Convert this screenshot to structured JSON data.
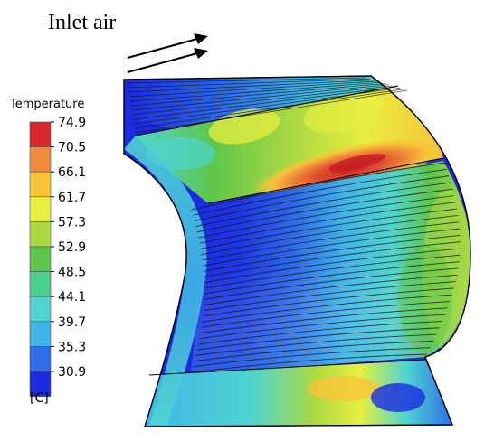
{
  "annotation": {
    "inlet_label": "Inlet air"
  },
  "legend": {
    "title": "Temperature",
    "unit": "[C]",
    "ticks": [
      "74.9",
      "70.5",
      "66.1",
      "61.7",
      "57.3",
      "52.9",
      "48.5",
      "44.1",
      "39.7",
      "35.3",
      "30.9"
    ],
    "colors": [
      "#d9262b",
      "#f08a3a",
      "#f7c438",
      "#e8ee3f",
      "#a9d843",
      "#5ec64a",
      "#4bcf8e",
      "#4fd4cf",
      "#3fb4e8",
      "#2f6ee8",
      "#1c2ae0"
    ]
  },
  "palette": {
    "hot": "#d9262b",
    "warm": "#f7c438",
    "mid": "#5ec64a",
    "cool": "#4fd4cf",
    "cold": "#1c2ae0",
    "fin_line": "#1a1a1a"
  }
}
